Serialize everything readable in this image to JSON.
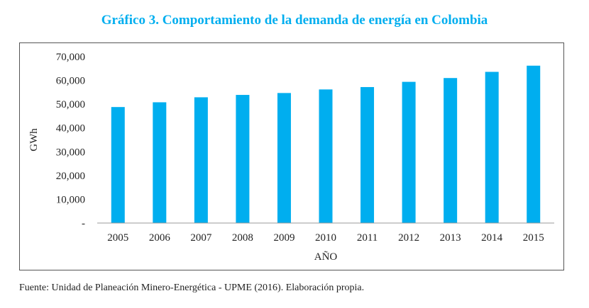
{
  "title": "Gráfico 3. Comportamiento de la demanda de energía en Colombia",
  "source": "Fuente: Unidad de Planeación Minero-Energética - UPME (2016). Elaboración propia.",
  "colors": {
    "title": "#00aeef",
    "bar": "#00aeef",
    "axis": "#555555"
  },
  "chart_data": {
    "type": "bar",
    "title": "Gráfico 3. Comportamiento de la demanda de energía en Colombia",
    "categories": [
      "2005",
      "2006",
      "2007",
      "2008",
      "2009",
      "2010",
      "2011",
      "2012",
      "2013",
      "2014",
      "2015"
    ],
    "values": [
      48800,
      50800,
      52900,
      53900,
      54700,
      56200,
      57200,
      59400,
      61000,
      63600,
      66200
    ],
    "xlabel": "AÑO",
    "ylabel": "GWh",
    "ylim": [
      0,
      70000
    ],
    "yticks": [
      0,
      10000,
      20000,
      30000,
      40000,
      50000,
      60000,
      70000
    ],
    "ytick_labels": [
      "-",
      "10,000",
      "20,000",
      "30,000",
      "40,000",
      "50,000",
      "60,000",
      "70,000"
    ],
    "grid": false,
    "legend": "none"
  }
}
